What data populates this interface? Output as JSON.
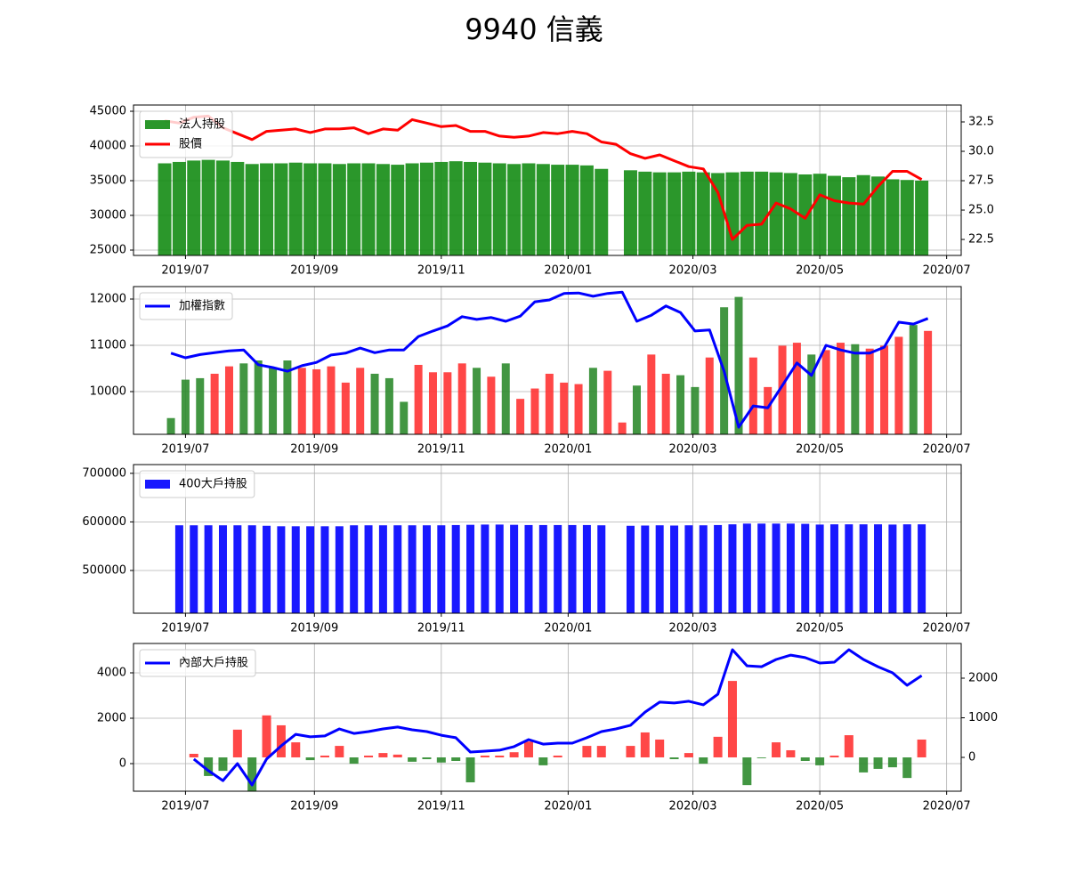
{
  "title": "9940 信義",
  "chart_data": [
    {
      "type": "combo",
      "x": [
        "2019-06-21",
        "2019-06-28",
        "2019-07-05",
        "2019-07-12",
        "2019-07-19",
        "2019-07-26",
        "2019-08-02",
        "2019-08-09",
        "2019-08-16",
        "2019-08-23",
        "2019-08-30",
        "2019-09-06",
        "2019-09-13",
        "2019-09-20",
        "2019-09-27",
        "2019-10-04",
        "2019-10-11",
        "2019-10-18",
        "2019-10-25",
        "2019-11-01",
        "2019-11-08",
        "2019-11-15",
        "2019-11-22",
        "2019-11-29",
        "2019-12-06",
        "2019-12-13",
        "2019-12-20",
        "2019-12-27",
        "2020-01-03",
        "2020-01-10",
        "2020-01-17",
        "2020-01-24",
        "2020-01-31",
        "2020-02-07",
        "2020-02-14",
        "2020-02-21",
        "2020-02-28",
        "2020-03-06",
        "2020-03-13",
        "2020-03-20",
        "2020-03-27",
        "2020-04-03",
        "2020-04-10",
        "2020-04-17",
        "2020-04-24",
        "2020-05-01",
        "2020-05-08",
        "2020-05-15",
        "2020-05-22",
        "2020-05-29",
        "2020-06-05",
        "2020-06-12",
        "2020-06-19"
      ],
      "xlim": [
        "2019-06-06",
        "2020-07-08"
      ],
      "xticks": [
        {
          "value": "2019-07-01",
          "label": "2019/07"
        },
        {
          "value": "2019-09-01",
          "label": "2019/09"
        },
        {
          "value": "2019-11-01",
          "label": "2019/11"
        },
        {
          "value": "2020-01-01",
          "label": "2020/01"
        },
        {
          "value": "2020-03-01",
          "label": "2020/03"
        },
        {
          "value": "2020-05-01",
          "label": "2020/05"
        },
        {
          "value": "2020-07-01",
          "label": "2020/07"
        }
      ],
      "ylim": [
        24230,
        45900
      ],
      "yticks": [
        25000,
        30000,
        35000,
        40000,
        45000
      ],
      "y2lim": [
        21.14,
        33.94
      ],
      "y2ticks": [
        22.5,
        {
          "value": 25,
          "label": "25.0"
        },
        27.5,
        {
          "value": 30,
          "label": "30.0"
        },
        32.5
      ],
      "grid": true,
      "legend": "upper left",
      "series": [
        {
          "name": "法人持股",
          "type": "bar",
          "color": "#148c14",
          "values": [
            37500,
            37700,
            37900,
            38000,
            37900,
            37700,
            37400,
            37500,
            37500,
            37600,
            37500,
            37500,
            37400,
            37500,
            37500,
            37400,
            37300,
            37500,
            37600,
            37700,
            37800,
            37700,
            37600,
            37500,
            37400,
            37500,
            37400,
            37300,
            37300,
            37200,
            36700,
            null,
            36500,
            36300,
            36200,
            36200,
            36300,
            36200,
            36100,
            36200,
            36300,
            36300,
            36200,
            36100,
            35900,
            36000,
            35700,
            35500,
            35800,
            35600,
            35200,
            35100,
            35000
          ]
        },
        {
          "name": "股價",
          "type": "line",
          "axis": "y2",
          "color": "#ff0000",
          "values": [
            32.6,
            32.4,
            32.9,
            33.0,
            32.0,
            31.5,
            31.0,
            31.7,
            31.8,
            31.9,
            31.6,
            31.9,
            31.9,
            32.0,
            31.5,
            31.9,
            31.8,
            32.7,
            32.4,
            32.1,
            32.2,
            31.7,
            31.7,
            31.3,
            31.2,
            31.3,
            31.6,
            31.5,
            31.7,
            31.5,
            30.8,
            30.6,
            29.8,
            29.4,
            29.7,
            29.2,
            28.7,
            28.5,
            26.5,
            22.5,
            23.7,
            23.8,
            25.6,
            25.1,
            24.3,
            26.3,
            25.8,
            25.6,
            25.5,
            27.0,
            28.3,
            28.3,
            27.6
          ]
        }
      ]
    },
    {
      "type": "combo",
      "x": [
        "2019-06-24",
        "2019-07-01",
        "2019-07-08",
        "2019-07-15",
        "2019-07-22",
        "2019-07-29",
        "2019-08-05",
        "2019-08-12",
        "2019-08-19",
        "2019-08-26",
        "2019-09-02",
        "2019-09-09",
        "2019-09-16",
        "2019-09-23",
        "2019-09-30",
        "2019-10-07",
        "2019-10-14",
        "2019-10-21",
        "2019-10-28",
        "2019-11-04",
        "2019-11-11",
        "2019-11-18",
        "2019-11-25",
        "2019-12-02",
        "2019-12-09",
        "2019-12-16",
        "2019-12-23",
        "2019-12-30",
        "2020-01-06",
        "2020-01-13",
        "2020-01-20",
        "2020-01-27",
        "2020-02-03",
        "2020-02-10",
        "2020-02-17",
        "2020-02-24",
        "2020-03-02",
        "2020-03-09",
        "2020-03-16",
        "2020-03-23",
        "2020-03-30",
        "2020-04-06",
        "2020-04-13",
        "2020-04-20",
        "2020-04-27",
        "2020-05-04",
        "2020-05-11",
        "2020-05-18",
        "2020-05-25",
        "2020-06-01",
        "2020-06-08",
        "2020-06-15",
        "2020-06-22"
      ],
      "xlim": [
        "2019-06-06",
        "2020-07-08"
      ],
      "xticks": [
        {
          "value": "2019-07-01",
          "label": "2019/07"
        },
        {
          "value": "2019-09-01",
          "label": "2019/09"
        },
        {
          "value": "2019-11-01",
          "label": "2019/11"
        },
        {
          "value": "2020-01-01",
          "label": "2020/01"
        },
        {
          "value": "2020-03-01",
          "label": "2020/03"
        },
        {
          "value": "2020-05-01",
          "label": "2020/05"
        },
        {
          "value": "2020-07-01",
          "label": "2020/07"
        }
      ],
      "ylim": [
        9077,
        12269
      ],
      "yticks": [
        10000,
        11000,
        12000
      ],
      "y2lim": [
        0,
        100
      ],
      "grid": true,
      "legend": "upper left",
      "series": [
        {
          "type": "bar",
          "axis": "y2",
          "colors": [
            "#2e8b2e",
            "#2e8b2e",
            "#2e8b2e",
            "#ff3333",
            "#ff3333",
            "#2e8b2e",
            "#2e8b2e",
            "#2e8b2e",
            "#2e8b2e",
            "#ff3333",
            "#ff3333",
            "#ff3333",
            "#ff3333",
            "#ff3333",
            "#2e8b2e",
            "#2e8b2e",
            "#2e8b2e",
            "#ff3333",
            "#ff3333",
            "#ff3333",
            "#ff3333",
            "#2e8b2e",
            "#ff3333",
            "#2e8b2e",
            "#ff3333",
            "#ff3333",
            "#ff3333",
            "#ff3333",
            "#ff3333",
            "#2e8b2e",
            "#ff3333",
            "#ff3333",
            "#2e8b2e",
            "#ff3333",
            "#ff3333",
            "#2e8b2e",
            "#2e8b2e",
            "#ff3333",
            "#2e8b2e",
            "#2e8b2e",
            "#ff3333",
            "#ff3333",
            "#ff3333",
            "#ff3333",
            "#2e8b2e",
            "#ff3333",
            "#ff3333",
            "#2e8b2e",
            "#ff3333",
            "#ff3333",
            "#ff3333",
            "#2e8b2e",
            "#ff3333"
          ],
          "values": [
            11,
            37,
            38,
            41,
            46,
            48,
            50,
            45,
            50,
            45,
            44,
            46,
            35,
            45,
            41,
            38,
            22,
            47,
            42,
            42,
            48,
            45,
            39,
            48,
            24,
            31,
            41,
            35,
            34,
            45,
            43,
            8,
            33,
            54,
            41,
            40,
            32,
            52,
            86,
            93,
            52,
            32,
            60,
            62,
            54,
            57,
            62,
            61,
            58,
            60,
            66,
            74,
            70
          ]
        },
        {
          "name": "加權指數",
          "type": "line",
          "color": "#0000ff",
          "values": [
            10830,
            10730,
            10800,
            10840,
            10880,
            10900,
            10580,
            10520,
            10440,
            10560,
            10630,
            10790,
            10830,
            10940,
            10840,
            10900,
            10900,
            11190,
            11310,
            11420,
            11620,
            11560,
            11600,
            11520,
            11630,
            11940,
            11980,
            12120,
            12130,
            12060,
            12120,
            12150,
            11520,
            11650,
            11850,
            11710,
            11310,
            11330,
            10440,
            9230,
            9690,
            9650,
            10130,
            10620,
            10350,
            11000,
            10900,
            10830,
            10830,
            10960,
            11500,
            11460,
            11580
          ]
        }
      ]
    },
    {
      "type": "combo",
      "x": [
        "2019-06-21",
        "2019-06-28",
        "2019-07-05",
        "2019-07-12",
        "2019-07-19",
        "2019-07-26",
        "2019-08-02",
        "2019-08-09",
        "2019-08-16",
        "2019-08-23",
        "2019-08-30",
        "2019-09-06",
        "2019-09-13",
        "2019-09-20",
        "2019-09-27",
        "2019-10-04",
        "2019-10-11",
        "2019-10-18",
        "2019-10-25",
        "2019-11-01",
        "2019-11-08",
        "2019-11-15",
        "2019-11-22",
        "2019-11-29",
        "2019-12-06",
        "2019-12-13",
        "2019-12-20",
        "2019-12-27",
        "2020-01-03",
        "2020-01-10",
        "2020-01-17",
        "2020-01-24",
        "2020-01-31",
        "2020-02-07",
        "2020-02-14",
        "2020-02-21",
        "2020-02-28",
        "2020-03-06",
        "2020-03-13",
        "2020-03-20",
        "2020-03-27",
        "2020-04-03",
        "2020-04-10",
        "2020-04-17",
        "2020-04-24",
        "2020-05-01",
        "2020-05-08",
        "2020-05-15",
        "2020-05-22",
        "2020-05-29",
        "2020-06-05",
        "2020-06-12",
        "2020-06-19"
      ],
      "xlim": [
        "2019-06-06",
        "2020-07-08"
      ],
      "xticks": [
        {
          "value": "2019-07-01",
          "label": "2019/07"
        },
        {
          "value": "2019-09-01",
          "label": "2019/09"
        },
        {
          "value": "2019-11-01",
          "label": "2019/11"
        },
        {
          "value": "2020-01-01",
          "label": "2020/01"
        },
        {
          "value": "2020-03-01",
          "label": "2020/03"
        },
        {
          "value": "2020-05-01",
          "label": "2020/05"
        },
        {
          "value": "2020-07-01",
          "label": "2020/07"
        }
      ],
      "ylim": [
        412000,
        718000
      ],
      "yticks": [
        500000,
        600000,
        700000
      ],
      "grid": true,
      "legend": "upper left",
      "series": [
        {
          "name": "400大戶持股",
          "type": "bar",
          "color": "#0000ff",
          "values": [
            null,
            593000,
            593000,
            593000,
            593000,
            593000,
            593000,
            592000,
            591000,
            591000,
            591000,
            591000,
            591000,
            593000,
            593000,
            593000,
            593000,
            593000,
            593000,
            593000,
            593500,
            594000,
            594500,
            594500,
            594000,
            593500,
            593500,
            593500,
            593500,
            593500,
            593000,
            null,
            592000,
            592500,
            593000,
            592500,
            593000,
            593000,
            593500,
            595000,
            596500,
            596500,
            596500,
            596500,
            596000,
            594500,
            595000,
            595000,
            595000,
            595000,
            594500,
            595000,
            595000
          ]
        }
      ]
    },
    {
      "type": "combo",
      "x": [
        "2019-06-21",
        "2019-06-28",
        "2019-07-05",
        "2019-07-12",
        "2019-07-19",
        "2019-07-26",
        "2019-08-02",
        "2019-08-09",
        "2019-08-16",
        "2019-08-23",
        "2019-08-30",
        "2019-09-06",
        "2019-09-13",
        "2019-09-20",
        "2019-09-27",
        "2019-10-04",
        "2019-10-11",
        "2019-10-18",
        "2019-10-25",
        "2019-11-01",
        "2019-11-08",
        "2019-11-15",
        "2019-11-22",
        "2019-11-29",
        "2019-12-06",
        "2019-12-13",
        "2019-12-20",
        "2019-12-27",
        "2020-01-03",
        "2020-01-10",
        "2020-01-17",
        "2020-01-24",
        "2020-01-31",
        "2020-02-07",
        "2020-02-14",
        "2020-02-21",
        "2020-02-28",
        "2020-03-06",
        "2020-03-13",
        "2020-03-20",
        "2020-03-27",
        "2020-04-03",
        "2020-04-10",
        "2020-04-17",
        "2020-04-24",
        "2020-05-01",
        "2020-05-08",
        "2020-05-15",
        "2020-05-22",
        "2020-05-29",
        "2020-06-05",
        "2020-06-12",
        "2020-06-19"
      ],
      "xlim": [
        "2019-06-06",
        "2020-07-08"
      ],
      "xticks": [
        {
          "value": "2019-07-01",
          "label": "2019/07"
        },
        {
          "value": "2019-09-01",
          "label": "2019/09"
        },
        {
          "value": "2019-11-01",
          "label": "2019/11"
        },
        {
          "value": "2020-01-01",
          "label": "2020/01"
        },
        {
          "value": "2020-03-01",
          "label": "2020/03"
        },
        {
          "value": "2020-05-01",
          "label": "2020/05"
        },
        {
          "value": "2020-07-01",
          "label": "2020/07"
        }
      ],
      "ylim": [
        -1216,
        5294
      ],
      "yticks": [
        0,
        2000,
        4000
      ],
      "y2lim": [
        -854,
        2876
      ],
      "y2ticks": [
        0,
        1000,
        2000
      ],
      "grid": true,
      "legend": "upper left",
      "series": [
        {
          "type": "bar",
          "axis": "y2",
          "color": "#ff3333",
          "negative_color": "#2e8b2e",
          "values": [
            null,
            null,
            90,
            -470,
            -340,
            700,
            -850,
            1060,
            810,
            380,
            -70,
            45,
            290,
            -160,
            45,
            110,
            70,
            -110,
            -45,
            -130,
            -90,
            -630,
            45,
            45,
            130,
            400,
            -200,
            45,
            null,
            290,
            290,
            null,
            290,
            630,
            450,
            -45,
            110,
            -160,
            520,
            1930,
            -700,
            -20,
            380,
            180,
            -90,
            -200,
            45,
            560,
            -380,
            -290,
            -250,
            -520,
            450
          ]
        },
        {
          "name": "內部大戶持股",
          "type": "line",
          "color": "#0000ff",
          "values": [
            null,
            null,
            200,
            -310,
            -750,
            0,
            -940,
            200,
            780,
            1290,
            1180,
            1220,
            1530,
            1330,
            1410,
            1530,
            1610,
            1490,
            1410,
            1250,
            1140,
            510,
            550,
            590,
            750,
            1060,
            860,
            900,
            900,
            1140,
            1410,
            1530,
            1690,
            2270,
            2710,
            2670,
            2750,
            2590,
            3060,
            5020,
            4310,
            4270,
            4590,
            4780,
            4670,
            4430,
            4470,
            5020,
            4590,
            4270,
            4000,
            3450,
            3880
          ]
        }
      ]
    }
  ]
}
